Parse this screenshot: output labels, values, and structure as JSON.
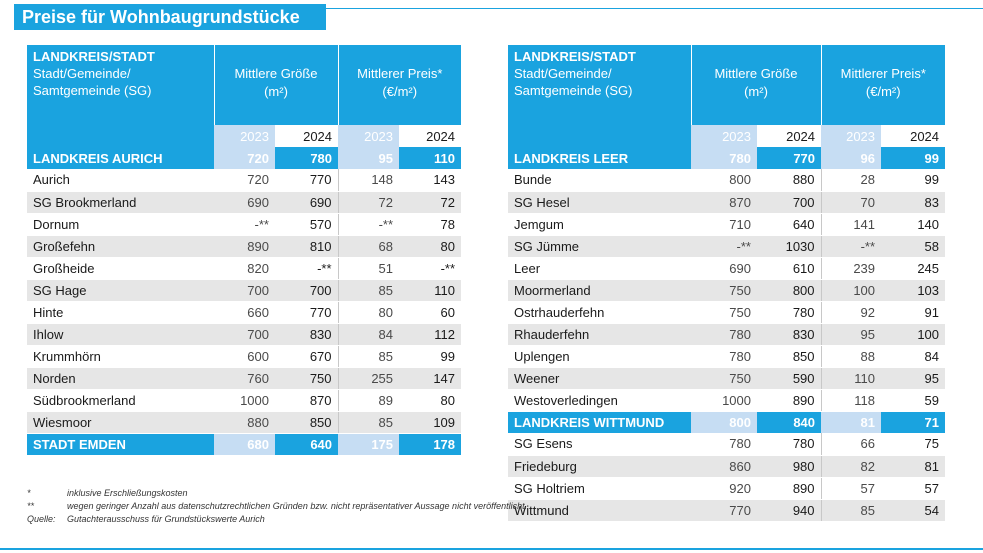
{
  "title": "Preise für Wohnbaugrundstücke",
  "header": {
    "region_label": "LANDKREIS/STADT",
    "municipality_label_1": "Stadt/Gemeinde/",
    "municipality_label_2": "Samtgemeinde (SG)",
    "size_label_1": "Mittlere Größe",
    "size_label_2": "(m²)",
    "price_label_1": "Mittlerer Preis*",
    "price_label_2": "(€/m²)",
    "year_a": "2023",
    "year_b": "2024"
  },
  "left_table": {
    "rows": [
      {
        "kind": "total",
        "name": "LANDKREIS AURICH",
        "size_2023": "720",
        "size_2024": "780",
        "price_2023": "95",
        "price_2024": "110"
      },
      {
        "kind": "row",
        "name": "Aurich",
        "size_2023": "720",
        "size_2024": "770",
        "price_2023": "148",
        "price_2024": "143"
      },
      {
        "kind": "row",
        "name": "SG Brookmerland",
        "size_2023": "690",
        "size_2024": "690",
        "price_2023": "72",
        "price_2024": "72"
      },
      {
        "kind": "row",
        "name": "Dornum",
        "size_2023": "-**",
        "size_2024": "570",
        "price_2023": "-**",
        "price_2024": "78"
      },
      {
        "kind": "row",
        "name": "Großefehn",
        "size_2023": "890",
        "size_2024": "810",
        "price_2023": "68",
        "price_2024": "80"
      },
      {
        "kind": "row",
        "name": "Großheide",
        "size_2023": "820",
        "size_2024": "-**",
        "price_2023": "51",
        "price_2024": "-**"
      },
      {
        "kind": "row",
        "name": "SG Hage",
        "size_2023": "700",
        "size_2024": "700",
        "price_2023": "85",
        "price_2024": "110"
      },
      {
        "kind": "row",
        "name": "Hinte",
        "size_2023": "660",
        "size_2024": "770",
        "price_2023": "80",
        "price_2024": "60"
      },
      {
        "kind": "row",
        "name": "Ihlow",
        "size_2023": "700",
        "size_2024": "830",
        "price_2023": "84",
        "price_2024": "112"
      },
      {
        "kind": "row",
        "name": "Krummhörn",
        "size_2023": "600",
        "size_2024": "670",
        "price_2023": "85",
        "price_2024": "99"
      },
      {
        "kind": "row",
        "name": "Norden",
        "size_2023": "760",
        "size_2024": "750",
        "price_2023": "255",
        "price_2024": "147"
      },
      {
        "kind": "row",
        "name": "Südbrookmerland",
        "size_2023": "1000",
        "size_2024": "870",
        "price_2023": "89",
        "price_2024": "80"
      },
      {
        "kind": "row",
        "name": "Wiesmoor",
        "size_2023": "880",
        "size_2024": "850",
        "price_2023": "85",
        "price_2024": "109"
      },
      {
        "kind": "total",
        "name": "STADT EMDEN",
        "size_2023": "680",
        "size_2024": "640",
        "price_2023": "175",
        "price_2024": "178"
      }
    ]
  },
  "right_table": {
    "rows": [
      {
        "kind": "total",
        "name": "LANDKREIS LEER",
        "size_2023": "780",
        "size_2024": "770",
        "price_2023": "96",
        "price_2024": "99"
      },
      {
        "kind": "row",
        "name": "Bunde",
        "size_2023": "800",
        "size_2024": "880",
        "price_2023": "28",
        "price_2024": "99"
      },
      {
        "kind": "row",
        "name": "SG Hesel",
        "size_2023": "870",
        "size_2024": "700",
        "price_2023": "70",
        "price_2024": "83"
      },
      {
        "kind": "row",
        "name": "Jemgum",
        "size_2023": "710",
        "size_2024": "640",
        "price_2023": "141",
        "price_2024": "140"
      },
      {
        "kind": "row",
        "name": "SG Jümme",
        "size_2023": "-**",
        "size_2024": "1030",
        "price_2023": "-**",
        "price_2024": "58"
      },
      {
        "kind": "row",
        "name": "Leer",
        "size_2023": "690",
        "size_2024": "610",
        "price_2023": "239",
        "price_2024": "245"
      },
      {
        "kind": "row",
        "name": "Moormerland",
        "size_2023": "750",
        "size_2024": "800",
        "price_2023": "100",
        "price_2024": "103"
      },
      {
        "kind": "row",
        "name": "Ostrhauderfehn",
        "size_2023": "750",
        "size_2024": "780",
        "price_2023": "92",
        "price_2024": "91"
      },
      {
        "kind": "row",
        "name": "Rhauderfehn",
        "size_2023": "780",
        "size_2024": "830",
        "price_2023": "95",
        "price_2024": "100"
      },
      {
        "kind": "row",
        "name": "Uplengen",
        "size_2023": "780",
        "size_2024": "850",
        "price_2023": "88",
        "price_2024": "84"
      },
      {
        "kind": "row",
        "name": "Weener",
        "size_2023": "750",
        "size_2024": "590",
        "price_2023": "110",
        "price_2024": "95"
      },
      {
        "kind": "row",
        "name": "Westoverledingen",
        "size_2023": "1000",
        "size_2024": "890",
        "price_2023": "118",
        "price_2024": "59"
      },
      {
        "kind": "total",
        "name": "LANDKREIS WITTMUND",
        "size_2023": "800",
        "size_2024": "840",
        "price_2023": "81",
        "price_2024": "71"
      },
      {
        "kind": "row",
        "name": "SG Esens",
        "size_2023": "780",
        "size_2024": "780",
        "price_2023": "66",
        "price_2024": "75"
      },
      {
        "kind": "row",
        "name": "Friedeburg",
        "size_2023": "860",
        "size_2024": "980",
        "price_2023": "82",
        "price_2024": "81"
      },
      {
        "kind": "row",
        "name": "SG Holtriem",
        "size_2023": "920",
        "size_2024": "890",
        "price_2023": "57",
        "price_2024": "57"
      },
      {
        "kind": "row",
        "name": "Wittmund",
        "size_2023": "770",
        "size_2024": "940",
        "price_2023": "85",
        "price_2024": "54"
      }
    ]
  },
  "footnotes": [
    {
      "key": "*",
      "text": "inklusive Erschließungskosten"
    },
    {
      "key": "**",
      "text": "wegen geringer Anzahl aus datenschutzrechtlichen Gründen bzw. nicht repräsentativer Aussage nicht veröffentlicht."
    },
    {
      "key": "Quelle:",
      "text": "Gutachterausschuss für Grundstückswerte Aurich"
    }
  ],
  "colors": {
    "accent": "#1aa3df",
    "year_2023_fill": "#c6ddf3",
    "stripe": "#e6e6e6"
  }
}
